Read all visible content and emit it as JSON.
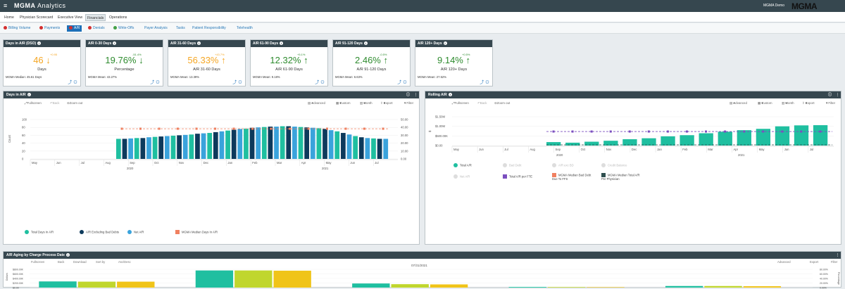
{
  "topbar": {
    "menu_icon": "menu-icon",
    "brand_bold": "MGMA",
    "brand_rest": " Analytics",
    "user": "MGMA Demo",
    "logo": "MGMA"
  },
  "nav": {
    "tabs": [
      "Home",
      "Physician Scorecard",
      "Executive View",
      "Financials",
      "Operations"
    ],
    "active": "Financials"
  },
  "subnav": {
    "items": [
      {
        "label": "Billing Volume",
        "dot": "#d32f2f"
      },
      {
        "label": "Payments",
        "dot": "#d32f2f"
      },
      {
        "label": "A/R",
        "dot": "#d32f2f"
      },
      {
        "label": "Denials",
        "dot": "#d32f2f"
      },
      {
        "label": "Write-Offs",
        "dot": "#43a047"
      },
      {
        "label": "Payer Analysis",
        "dot": ""
      },
      {
        "label": "Tasks",
        "dot": ""
      },
      {
        "label": "Patient Responsibility",
        "dot": ""
      },
      {
        "label": "Telehealth",
        "dot": ""
      }
    ],
    "active": "A/R"
  },
  "kpis": [
    {
      "title": "Days in A/R (DSO)",
      "value": "46",
      "arrow": "↓",
      "change": "+0.95",
      "label": "Days",
      "median": "MGMA Median: 45.61 Days",
      "color": "#f5a623"
    },
    {
      "title": "A/R 0-30 Days",
      "value": "19.76%",
      "arrow": "↓",
      "change": "-51.4%",
      "label": "Percentage",
      "median": "MGMA Mean: 43.27%",
      "color": "#2e8b2e"
    },
    {
      "title": "A/R 31-60 Days",
      "value": "56.33%",
      "arrow": "↑",
      "change": "+43.7%",
      "label": "A/R 31-60 Days",
      "median": "MGMA Mean: 13.39%",
      "color": "#f5a623"
    },
    {
      "title": "A/R 61-90 Days",
      "value": "12.32%",
      "arrow": "↑",
      "change": "+5.1%",
      "label": "A/R 61-90 Days",
      "median": "MGMA Mean: 9.18%",
      "color": "#2e8b2e"
    },
    {
      "title": "A/R 91-120 Days",
      "value": "2.46%",
      "arrow": "↑",
      "change": "-0.5%",
      "label": "A/R 91-120 Days",
      "median": "MGMA Mean: 6.63%",
      "color": "#2e8b2e"
    },
    {
      "title": "A/R 120+ Days",
      "value": "9.14%",
      "arrow": "↑",
      "change": "+0.5%",
      "label": "A/R 120+ Days",
      "median": "MGMA Mean: 27.52%",
      "color": "#2e8b2e"
    }
  ],
  "toolbar_labels": {
    "fullscreen": "Fullscreen",
    "back": "Back",
    "zoom_out": "Zoom out",
    "download": "Download",
    "sort_by": "Sort by",
    "asc_desc": "Asc/Desc",
    "advanced": "Advanced",
    "custom": "Custom",
    "month": "Month",
    "export": "Export",
    "filter": "Filter"
  },
  "panels": {
    "days_in_ar": {
      "title": "Days in A/R"
    },
    "rolling_ar": {
      "title": "Rolling A/R"
    },
    "aging": {
      "title": "A/R Aging by Charge Process Date",
      "date": "07/31/2021"
    }
  },
  "chart_data": [
    {
      "type": "bar",
      "title": "Days in A/R",
      "ylabel": "Count",
      "y2label": "",
      "ylim": [
        0,
        100
      ],
      "y_ticks": [
        "0",
        "20",
        "40",
        "60",
        "80",
        "100"
      ],
      "y2_ticks": [
        "0.00",
        "10.00",
        "20.00",
        "30.00",
        "40.00",
        "50.00"
      ],
      "x_month_labels": [
        "May",
        "Jun",
        "Jul",
        "Aug",
        "Sep",
        "Oct",
        "Nov",
        "Dec",
        "Jan",
        "Feb",
        "Mar",
        "Apr",
        "May",
        "Jun",
        "Jul"
      ],
      "x_year_labels": [
        "2020",
        "2021"
      ],
      "series": [
        {
          "name": "Total Days In A/R",
          "color": "#1fbfa0"
        },
        {
          "name": "A/R Excluding Bad Debts",
          "color": "#0d3a5c"
        },
        {
          "name": "Net A/R",
          "color": "#3aa3dc"
        },
        {
          "name": "MGMA Median Days In A/R",
          "color": "#f08060"
        }
      ],
      "bars": [
        {
          "value": 51,
          "series": 0
        },
        {
          "value": 51,
          "series": 1
        },
        {
          "value": 52,
          "series": 2
        },
        {
          "value": 53,
          "series": 0
        },
        {
          "value": 53,
          "series": 1
        },
        {
          "value": 55,
          "series": 2
        },
        {
          "value": 56,
          "series": 0
        },
        {
          "value": 57,
          "series": 1
        },
        {
          "value": 58,
          "series": 2
        },
        {
          "value": 59,
          "series": 0
        },
        {
          "value": 60,
          "series": 1
        },
        {
          "value": 61,
          "series": 2
        },
        {
          "value": 62,
          "series": 0
        },
        {
          "value": 64,
          "series": 1
        },
        {
          "value": 65,
          "series": 2
        },
        {
          "value": 66,
          "series": 0
        },
        {
          "value": 68,
          "series": 1
        },
        {
          "value": 70,
          "series": 2
        },
        {
          "value": 72,
          "series": 0
        },
        {
          "value": 74,
          "series": 1
        },
        {
          "value": 76,
          "series": 2
        },
        {
          "value": 77,
          "series": 0
        },
        {
          "value": 79,
          "series": 1
        },
        {
          "value": 80,
          "series": 2
        },
        {
          "value": 81,
          "series": 0
        },
        {
          "value": 82,
          "series": 1
        },
        {
          "value": 82,
          "series": 2
        },
        {
          "value": 83,
          "series": 0
        },
        {
          "value": 83,
          "series": 1
        },
        {
          "value": 82,
          "series": 2
        },
        {
          "value": 81,
          "series": 0
        },
        {
          "value": 80,
          "series": 1
        },
        {
          "value": 79,
          "series": 2
        },
        {
          "value": 78,
          "series": 0
        },
        {
          "value": 76,
          "series": 1
        },
        {
          "value": 73,
          "series": 2
        },
        {
          "value": 70,
          "series": 0
        },
        {
          "value": 66,
          "series": 1
        },
        {
          "value": 62,
          "series": 2
        },
        {
          "value": 58,
          "series": 0
        },
        {
          "value": 55,
          "series": 1
        },
        {
          "value": 53,
          "series": 2
        },
        {
          "value": 52,
          "series": 0
        },
        {
          "value": 51,
          "series": 1
        },
        {
          "value": 51,
          "series": 2
        }
      ],
      "median_line": 45.61,
      "legend_position": "bottom"
    },
    {
      "type": "bar",
      "title": "Rolling A/R",
      "ylabel": "$",
      "ylim": [
        0,
        1500000
      ],
      "y_ticks": [
        "$0.00",
        "$500.00K",
        "$1.00M",
        "$1.50M"
      ],
      "x_month_labels": [
        "May",
        "Jun",
        "Jul",
        "Aug",
        "Sep",
        "Oct",
        "Nov",
        "Dec",
        "Jan",
        "Feb",
        "Mar",
        "Apr",
        "May",
        "Jun",
        "Jul"
      ],
      "x_year_labels": [
        "2020",
        "2021"
      ],
      "series": [
        {
          "name": "Total A/R",
          "color": "#1fbfa0",
          "values": [
            180000,
            150000,
            200000,
            250000,
            330000,
            380000,
            480000,
            540000,
            640000,
            720000,
            800000,
            870000,
            1000000,
            1050000,
            1060000
          ]
        },
        {
          "name": "Total A/R per FTE",
          "color": "#7b4fbf",
          "values": [
            730000,
            730000,
            730000,
            730000,
            730000,
            730000,
            730000,
            730000,
            730000,
            730000,
            730000,
            730000,
            730000,
            730000,
            730000
          ]
        },
        {
          "name": "MGMA Median Bad Debt Due To FFS",
          "color": "#f08060"
        },
        {
          "name": "MGMA Median Total A/R Per Physician",
          "color": "#2f4f4f"
        }
      ],
      "legend_inactive": [
        "Net A/R",
        "Bad Debt",
        "A/R exc BD",
        "Credit Balance"
      ],
      "legend_position": "bottom"
    },
    {
      "type": "bar",
      "title": "A/R Aging by Charge Process Date",
      "subtitle": "07/31/2021",
      "ylabel": "Dollars",
      "y2label": "Percentage",
      "ylim": [
        0,
        800000
      ],
      "y_ticks": [
        "$0.00",
        "$200.00K",
        "$400.00K",
        "$600.00K",
        "$800.00K"
      ],
      "y2_ticks": [
        "0.00%",
        "20.00%",
        "40.00%",
        "60.00%",
        "80.00%"
      ],
      "categories": [
        "0-30",
        "31-60",
        "61-90",
        "91-120",
        "Above 180"
      ],
      "series": [
        {
          "name": "Total A/R",
          "color": "#1fbfa0",
          "values": [
            270000,
            750000,
            180000,
            30000,
            70000
          ]
        },
        {
          "name": "A/R Excluding Bad Debts",
          "color": "#c0d62e",
          "values": [
            260000,
            750000,
            150000,
            25000,
            70000
          ]
        },
        {
          "name": "Net A/R",
          "color": "#f0c419",
          "values": [
            260000,
            740000,
            140000,
            20000,
            60000
          ]
        },
        {
          "name": "Percent A/R Total",
          "color": "#1a8a7a",
          "values": [
            20,
            56,
            12,
            2.5,
            9
          ]
        },
        {
          "name": "Percent Total A/R per FTE Median",
          "color": "#2f4f4f"
        }
      ],
      "legend_inactive": [
        "Bad Debt",
        "Credit Balance"
      ],
      "legend_position": "bottom"
    }
  ]
}
